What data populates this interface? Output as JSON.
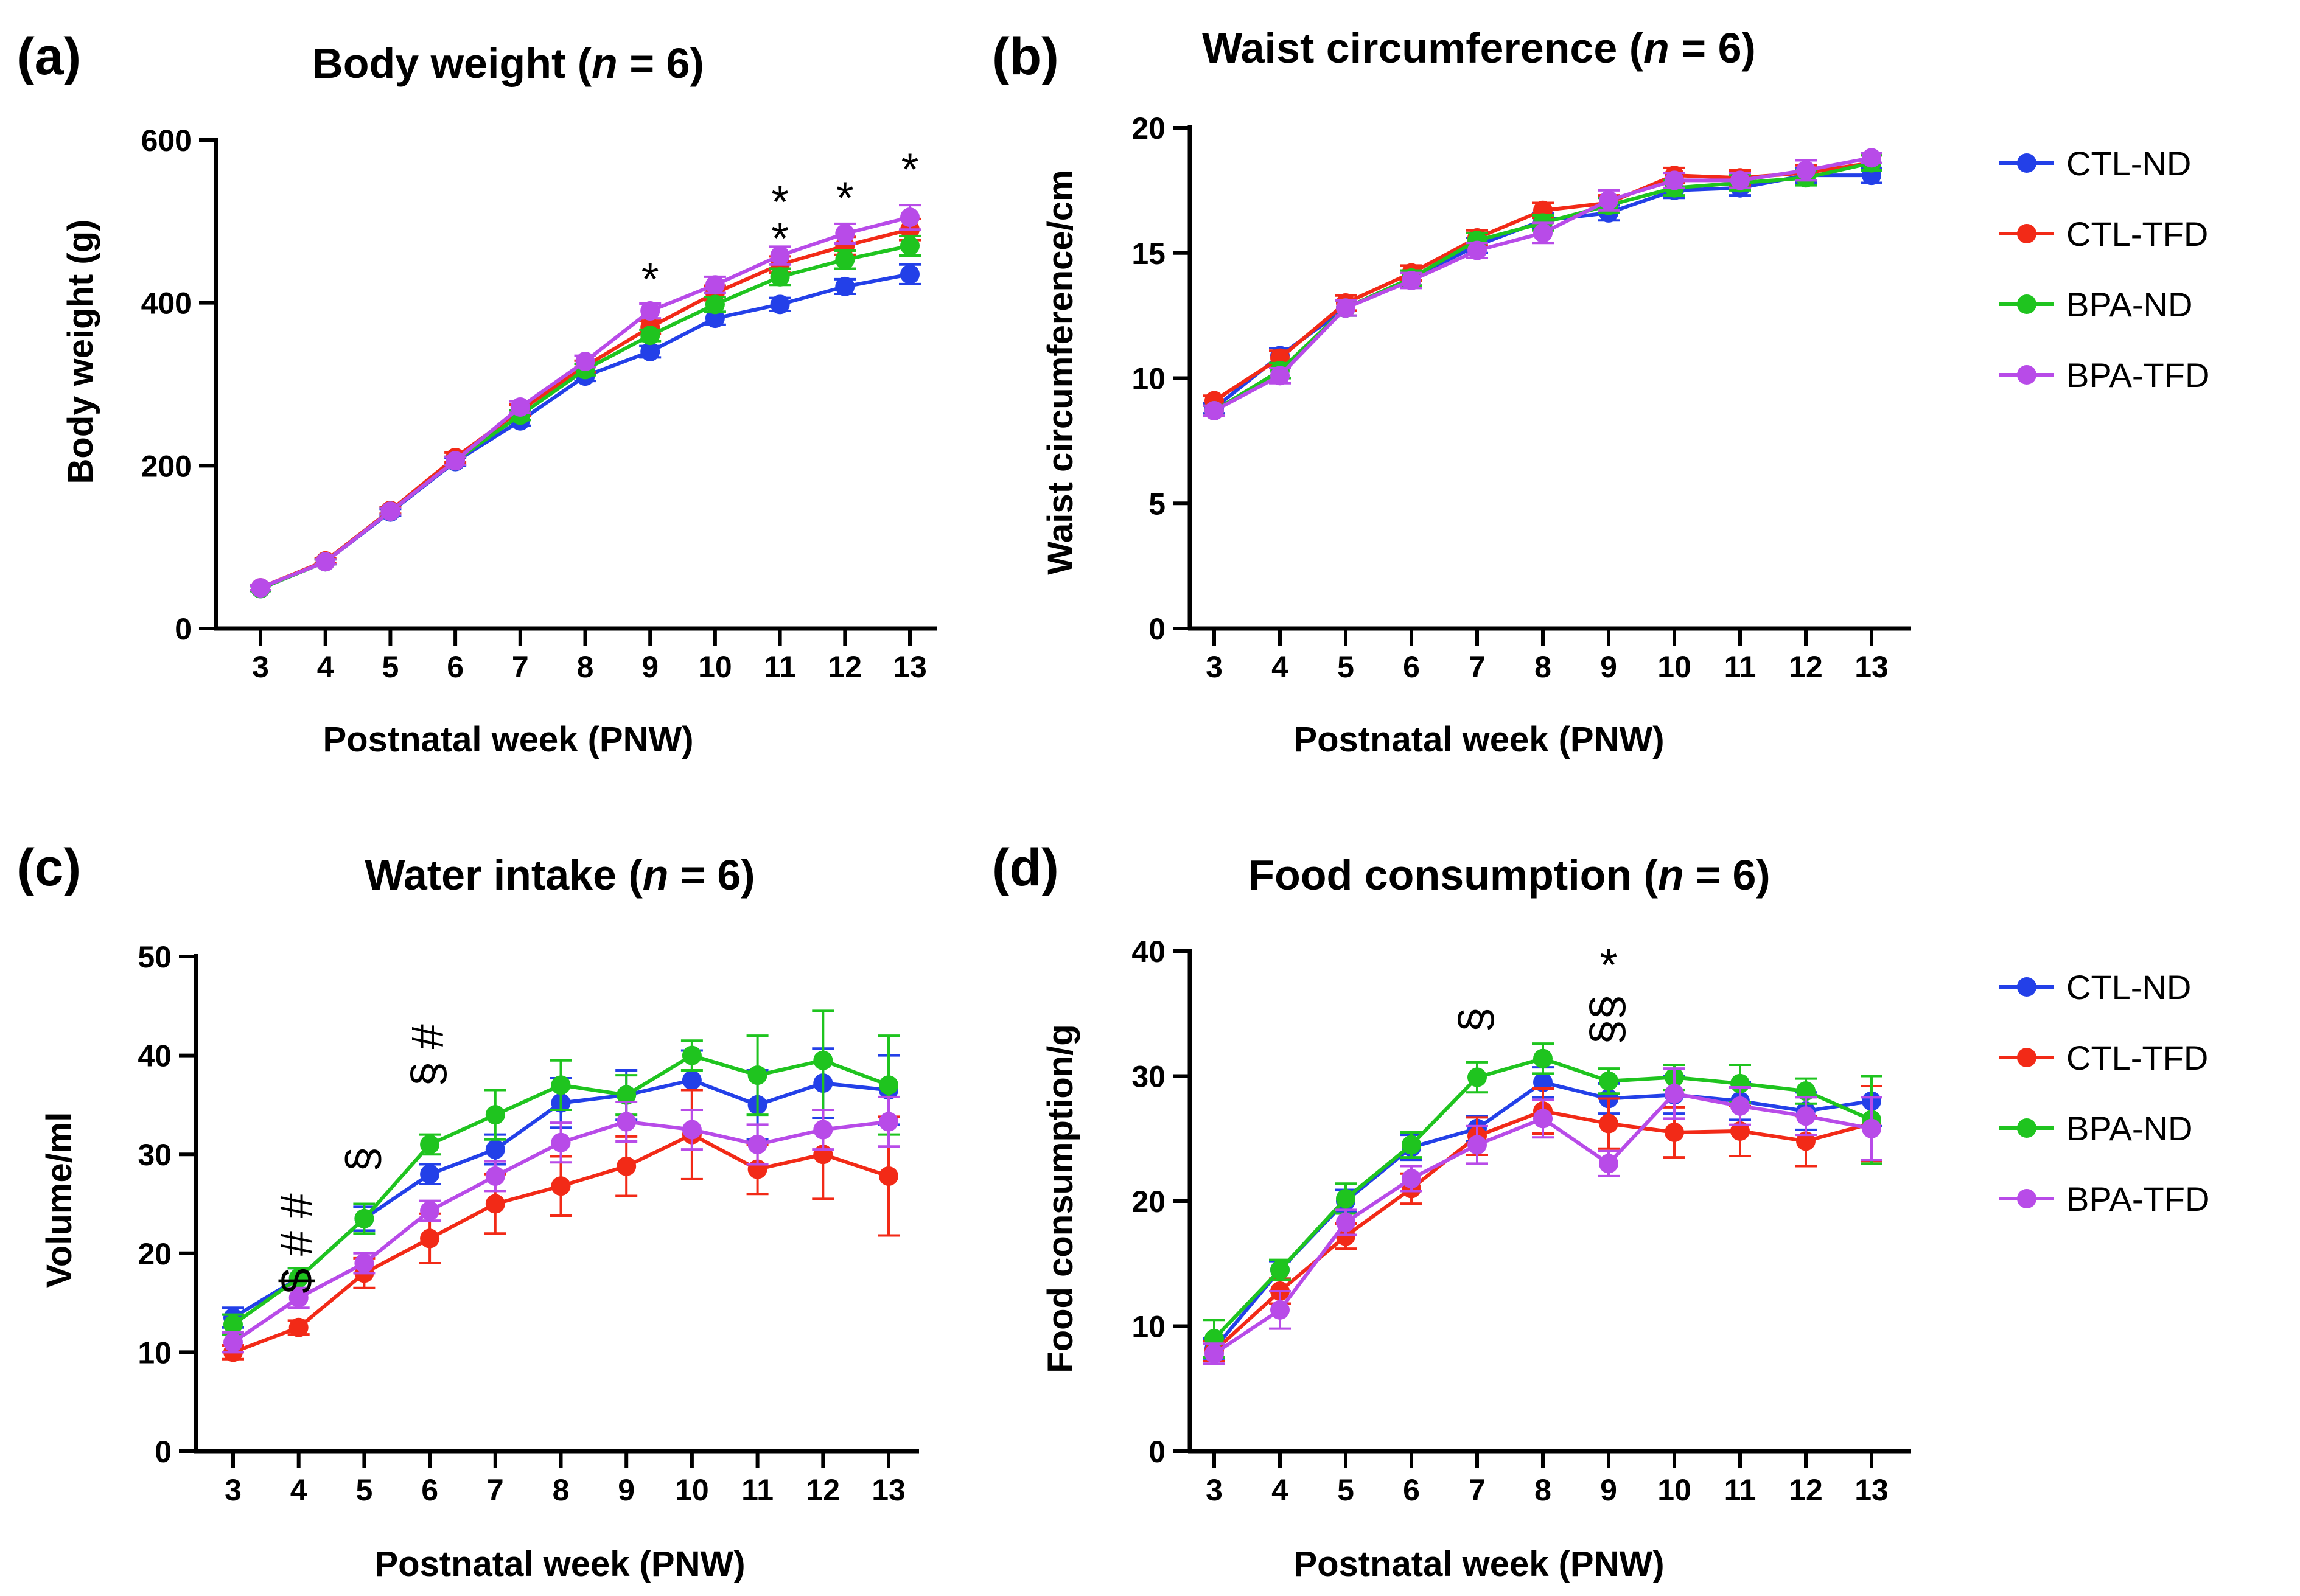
{
  "colors": {
    "CTL-ND": "#2340e8",
    "CTL-TFD": "#f22a17",
    "BPA-ND": "#1fc41f",
    "BPA-TFD": "#b84be8"
  },
  "legend_items": [
    "CTL-ND",
    "CTL-TFD",
    "BPA-ND",
    "BPA-TFD"
  ],
  "chart_data": [
    {
      "panel": "(a)",
      "type": "line",
      "title": "Body weight (n = 6)",
      "title_main": "Body weight (",
      "title_n": "n",
      "title_rest": " = 6)",
      "xlabel": "Postnatal week (PNW)",
      "ylabel": "Body weight (g)",
      "x": [
        3,
        4,
        5,
        6,
        7,
        8,
        9,
        10,
        11,
        12,
        13
      ],
      "ylim": [
        0,
        600
      ],
      "yticks": [
        0,
        200,
        400,
        600
      ],
      "series": [
        {
          "name": "CTL-ND",
          "values": [
            49,
            82,
            143,
            205,
            255,
            310,
            340,
            381,
            398,
            420,
            435
          ],
          "errors": [
            3,
            3,
            4,
            5,
            6,
            6,
            7,
            8,
            8,
            9,
            12
          ]
        },
        {
          "name": "CTL-TFD",
          "values": [
            50,
            83,
            145,
            210,
            268,
            322,
            370,
            412,
            447,
            470,
            490
          ],
          "errors": [
            3,
            3,
            4,
            6,
            7,
            7,
            8,
            9,
            10,
            11,
            13
          ]
        },
        {
          "name": "BPA-ND",
          "values": [
            49,
            82,
            144,
            206,
            262,
            318,
            360,
            398,
            432,
            453,
            470
          ],
          "errors": [
            3,
            3,
            4,
            5,
            6,
            7,
            7,
            9,
            10,
            11,
            12
          ]
        },
        {
          "name": "BPA-TFD",
          "values": [
            50,
            82,
            144,
            206,
            272,
            328,
            390,
            422,
            458,
            485,
            505
          ],
          "errors": [
            3,
            3,
            4,
            5,
            7,
            7,
            9,
            10,
            11,
            12,
            15
          ]
        }
      ],
      "annotations": [
        {
          "x": 9,
          "y": 440,
          "text": "*",
          "rotate": false
        },
        {
          "x": 11,
          "y": 535,
          "text": "*",
          "rotate": false
        },
        {
          "x": 11,
          "y": 490,
          "text": "*",
          "rotate": false
        },
        {
          "x": 12,
          "y": 540,
          "text": "*",
          "rotate": false
        },
        {
          "x": 13,
          "y": 575,
          "text": "*",
          "rotate": false
        }
      ]
    },
    {
      "panel": "(b)",
      "type": "line",
      "title": "Waist circumference (n = 6)",
      "title_main": "Waist circumference (",
      "title_n": "n",
      "title_rest": " = 6)",
      "xlabel": "Postnatal week (PNW)",
      "ylabel": "Waist circumference/cm",
      "x": [
        3,
        4,
        5,
        6,
        7,
        8,
        9,
        10,
        11,
        12,
        13
      ],
      "ylim": [
        0,
        20
      ],
      "yticks": [
        0,
        5,
        10,
        15,
        20
      ],
      "series": [
        {
          "name": "CTL-ND",
          "values": [
            8.8,
            10.9,
            12.8,
            14.0,
            15.3,
            16.3,
            16.6,
            17.5,
            17.6,
            18.1,
            18.1
          ],
          "errors": [
            0.2,
            0.3,
            0.3,
            0.3,
            0.3,
            0.3,
            0.3,
            0.3,
            0.3,
            0.3,
            0.3
          ]
        },
        {
          "name": "CTL-TFD",
          "values": [
            9.1,
            10.8,
            13.0,
            14.2,
            15.6,
            16.7,
            17.0,
            18.1,
            18.0,
            18.2,
            18.6
          ],
          "errors": [
            0.2,
            0.3,
            0.3,
            0.3,
            0.3,
            0.3,
            0.3,
            0.3,
            0.3,
            0.3,
            0.3
          ]
        },
        {
          "name": "BPA-ND",
          "values": [
            8.7,
            10.3,
            12.8,
            14.0,
            15.5,
            16.2,
            16.9,
            17.6,
            17.8,
            18.0,
            18.6
          ],
          "errors": [
            0.2,
            0.3,
            0.3,
            0.3,
            0.3,
            0.3,
            0.3,
            0.3,
            0.3,
            0.3,
            0.3
          ]
        },
        {
          "name": "BPA-TFD",
          "values": [
            8.7,
            10.1,
            12.8,
            13.9,
            15.1,
            15.8,
            17.1,
            17.9,
            17.9,
            18.3,
            18.8
          ],
          "errors": [
            0.2,
            0.3,
            0.3,
            0.3,
            0.3,
            0.4,
            0.4,
            0.3,
            0.3,
            0.4,
            0.2
          ]
        }
      ],
      "annotations": []
    },
    {
      "panel": "(c)",
      "type": "line",
      "title": "Water intake (n = 6)",
      "title_main": "Water intake (",
      "title_n": "n",
      "title_rest": " = 6)",
      "xlabel": "Postnatal week (PNW)",
      "ylabel": "Volume/ml",
      "x": [
        3,
        4,
        5,
        6,
        7,
        8,
        9,
        10,
        11,
        12,
        13
      ],
      "ylim": [
        0,
        50
      ],
      "yticks": [
        0,
        10,
        20,
        30,
        40,
        50
      ],
      "series": [
        {
          "name": "CTL-ND",
          "values": [
            13.5,
            17.5,
            23.5,
            28.0,
            30.5,
            35.2,
            36.0,
            37.5,
            35.0,
            37.2,
            36.5
          ],
          "errors": [
            1.0,
            1.0,
            1.2,
            1.0,
            1.5,
            2.5,
            2.5,
            3.0,
            3.5,
            3.5,
            3.5
          ]
        },
        {
          "name": "CTL-TFD",
          "values": [
            10.0,
            12.5,
            18.0,
            21.5,
            25.0,
            26.8,
            28.8,
            32.0,
            28.5,
            30.0,
            27.8
          ],
          "errors": [
            0.7,
            0.7,
            1.5,
            2.5,
            3.0,
            3.0,
            3.0,
            4.5,
            2.5,
            4.5,
            6.0
          ]
        },
        {
          "name": "BPA-ND",
          "values": [
            12.8,
            17.5,
            23.5,
            31.0,
            34.0,
            37.0,
            36.0,
            40.0,
            38.0,
            39.5,
            37.0
          ],
          "errors": [
            1.0,
            1.0,
            1.5,
            1.0,
            2.5,
            2.5,
            2.0,
            1.5,
            4.0,
            5.0,
            5.0
          ]
        },
        {
          "name": "BPA-TFD",
          "values": [
            11.0,
            15.5,
            19.0,
            24.3,
            27.8,
            31.2,
            33.3,
            32.5,
            31.0,
            32.5,
            33.3
          ],
          "errors": [
            1.0,
            1.0,
            1.0,
            1.0,
            1.5,
            2.0,
            2.0,
            2.0,
            2.0,
            2.0,
            2.5
          ]
        }
      ],
      "annotations": [
        {
          "x": 4,
          "y": 21,
          "text": "$ # #",
          "rotate": true
        },
        {
          "x": 5,
          "y": 29.5,
          "text": "§",
          "rotate": true
        },
        {
          "x": 6,
          "y": 40,
          "text": "§ #",
          "rotate": true
        }
      ]
    },
    {
      "panel": "(d)",
      "type": "line",
      "title": "Food consumption (n = 6)",
      "title_main": "Food consumption (",
      "title_n": "n",
      "title_rest": " = 6)",
      "xlabel": "Postnatal week (PNW)",
      "ylabel": "Food consumption/g",
      "x": [
        3,
        4,
        5,
        6,
        7,
        8,
        9,
        10,
        11,
        12,
        13
      ],
      "ylim": [
        0,
        40
      ],
      "yticks": [
        0,
        10,
        20,
        30,
        40
      ],
      "series": [
        {
          "name": "CTL-ND",
          "values": [
            8.2,
            14.5,
            20.0,
            24.3,
            25.8,
            29.5,
            28.2,
            28.5,
            28.0,
            27.2,
            28.0
          ],
          "errors": [
            0.8,
            0.7,
            0.9,
            1.0,
            1.0,
            1.2,
            1.2,
            1.5,
            1.5,
            1.5,
            2.0
          ]
        },
        {
          "name": "CTL-TFD",
          "values": [
            8.0,
            12.8,
            17.2,
            21.0,
            25.2,
            27.2,
            26.2,
            25.5,
            25.6,
            24.8,
            26.2
          ],
          "errors": [
            0.8,
            1.0,
            1.0,
            1.2,
            1.5,
            1.8,
            2.0,
            2.0,
            2.0,
            2.0,
            3.0
          ]
        },
        {
          "name": "BPA-ND",
          "values": [
            9.0,
            14.5,
            20.2,
            24.5,
            29.9,
            31.4,
            29.6,
            29.9,
            29.4,
            28.8,
            26.5
          ],
          "errors": [
            1.5,
            0.8,
            1.2,
            1.0,
            1.2,
            1.2,
            1.0,
            1.0,
            1.5,
            1.0,
            3.5
          ]
        },
        {
          "name": "BPA-TFD",
          "values": [
            7.8,
            11.3,
            18.3,
            21.8,
            24.5,
            26.6,
            23.0,
            28.6,
            27.6,
            26.8,
            25.8
          ],
          "errors": [
            0.8,
            1.5,
            1.0,
            1.0,
            1.5,
            1.5,
            1.0,
            2.0,
            1.5,
            1.5,
            2.5
          ]
        }
      ],
      "annotations": [
        {
          "x": 7,
          "y": 34.5,
          "text": "§",
          "rotate": true
        },
        {
          "x": 9,
          "y": 34.5,
          "text": "§§",
          "rotate": true
        },
        {
          "x": 9,
          "y": 39.6,
          "text": "*",
          "rotate": false
        }
      ]
    }
  ]
}
